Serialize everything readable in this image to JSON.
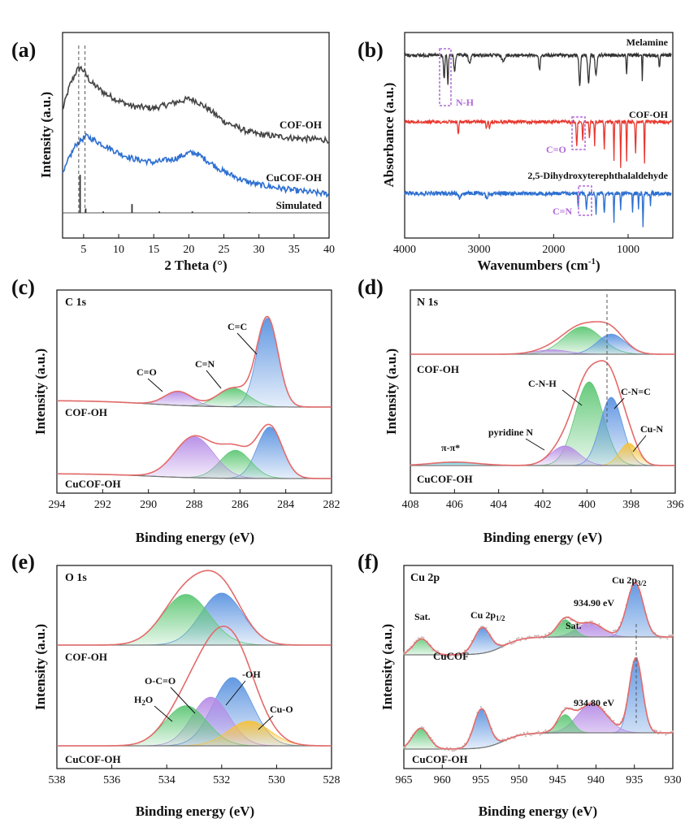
{
  "colors": {
    "dark": "#444444",
    "blue": "#2d6fd1",
    "red": "#e8382f",
    "envelope": "#e46a6a",
    "blueFill": "#5b93e0",
    "greenFill": "#5ec775",
    "purpleFill": "#b68ce6",
    "yellowFill": "#f7c23a",
    "baseline": "#777777",
    "annPurple": "#b06ad8"
  },
  "chart_data": [
    {
      "panel": "(a)",
      "type": "line",
      "title": "",
      "xlabel": "2 Theta (°)",
      "ylabel": "Intensity (a.u.)",
      "xlim": [
        2,
        40
      ],
      "xticks": [
        5,
        10,
        15,
        20,
        25,
        30,
        35,
        40
      ],
      "reference_lines": [
        4.3,
        5.2
      ],
      "series": [
        {
          "name": "COF-OH",
          "x": [
            2,
            3,
            4,
            4.5,
            5,
            6,
            8,
            10,
            12,
            15,
            18,
            20,
            21,
            23,
            25,
            28,
            30,
            35,
            40
          ],
          "y": [
            55,
            68,
            76,
            78,
            76,
            70,
            64,
            60,
            57,
            56,
            59,
            61,
            60,
            55,
            49,
            44,
            42,
            40,
            39
          ]
        },
        {
          "name": "CuCOF-OH",
          "x": [
            2,
            3,
            4,
            5,
            5.5,
            6,
            8,
            10,
            12,
            15,
            18,
            20,
            21,
            23,
            25,
            28,
            30,
            35,
            40
          ],
          "y": [
            20,
            30,
            37,
            40,
            41,
            40,
            36,
            32,
            29,
            27,
            29,
            32,
            32,
            27,
            22,
            17,
            15,
            12,
            10
          ]
        },
        {
          "name": "Simulated",
          "sticks": [
            [
              4.5,
              26
            ],
            [
              5.3,
              3
            ],
            [
              7.8,
              1
            ],
            [
              11.9,
              6
            ],
            [
              15.8,
              1
            ],
            [
              20.5,
              1
            ],
            [
              28.6,
              0.5
            ]
          ]
        }
      ]
    },
    {
      "panel": "(b)",
      "type": "line",
      "title": "",
      "xlabel": "Wavenumbers (cm⁻¹)",
      "ylabel": "Absorbance (a.u.)",
      "xlim": [
        4000,
        400
      ],
      "xticks": [
        4000,
        3000,
        2000,
        1000
      ],
      "series": [
        {
          "name": "Melamine"
        },
        {
          "name": "COF-OH"
        },
        {
          "name": "2,5-Dihydroxyterephthalaldehyde"
        }
      ],
      "annotations": [
        "N-H",
        "C=O",
        "C=N"
      ]
    },
    {
      "panel": "(c)",
      "type": "line",
      "title": "C 1s",
      "xlabel": "Binding energy (eV)",
      "ylabel": "Intensity (a.u.)",
      "xlim": [
        294,
        282
      ],
      "xticks": [
        294,
        292,
        290,
        288,
        286,
        284,
        282
      ],
      "samples": [
        "COF-OH",
        "CuCOF-OH"
      ],
      "peaks": [
        {
          "sample": "COF-OH",
          "label": "C=C",
          "center": 284.8,
          "height": 0.95,
          "fwhm": 1.1
        },
        {
          "sample": "COF-OH",
          "label": "C=N",
          "center": 286.3,
          "height": 0.2,
          "fwhm": 1.6
        },
        {
          "sample": "COF-OH",
          "label": "C=O",
          "center": 288.7,
          "height": 0.15,
          "fwhm": 1.4
        },
        {
          "sample": "CuCOF-OH",
          "center": 284.7,
          "height": 0.55,
          "fwhm": 1.3
        },
        {
          "sample": "CuCOF-OH",
          "center": 286.2,
          "height": 0.3,
          "fwhm": 1.6
        },
        {
          "sample": "CuCOF-OH",
          "center": 288.0,
          "height": 0.44,
          "fwhm": 2.0
        }
      ]
    },
    {
      "panel": "(d)",
      "type": "line",
      "title": "N 1s",
      "xlabel": "Binding energy (eV)",
      "ylabel": "Intensity (a.u.)",
      "xlim": [
        408,
        396
      ],
      "xticks": [
        408,
        406,
        404,
        402,
        400,
        398,
        396
      ],
      "reference_lines": [
        399.0
      ],
      "samples": [
        "COF-OH",
        "CuCOF-OH"
      ],
      "peaks": [
        {
          "sample": "COF-OH",
          "center": 400.2,
          "height": 0.75,
          "fwhm": 2.0
        },
        {
          "sample": "COF-OH",
          "center": 398.9,
          "height": 0.55,
          "fwhm": 1.5
        },
        {
          "sample": "COF-OH",
          "center": 401.6,
          "height": 0.12,
          "fwhm": 1.8
        },
        {
          "sample": "CuCOF-OH",
          "label": "C-N-H",
          "center": 399.9,
          "height": 0.98,
          "fwhm": 1.5
        },
        {
          "sample": "CuCOF-OH",
          "label": "C-N=C",
          "center": 398.9,
          "height": 0.8,
          "fwhm": 1.2
        },
        {
          "sample": "CuCOF-OH",
          "label": "Cu-N",
          "center": 398.1,
          "height": 0.26,
          "fwhm": 1.0
        },
        {
          "sample": "CuCOF-OH",
          "label": "pyridine N",
          "center": 401.0,
          "height": 0.23,
          "fwhm": 1.5
        },
        {
          "sample": "CuCOF-OH",
          "label": "π-π*",
          "center": 406.0,
          "height": 0.04,
          "fwhm": 2.5
        }
      ]
    },
    {
      "panel": "(e)",
      "type": "line",
      "title": "O 1s",
      "xlabel": "Binding energy (eV)",
      "ylabel": "Intensity (a.u.)",
      "xlim": [
        538,
        528
      ],
      "xticks": [
        538,
        536,
        534,
        532,
        530,
        528
      ],
      "samples": [
        "COF-OH",
        "CuCOF-OH"
      ],
      "peaks": [
        {
          "sample": "COF-OH",
          "center": 532.0,
          "height": 0.8,
          "fwhm": 1.8
        },
        {
          "sample": "COF-OH",
          "center": 533.3,
          "height": 0.78,
          "fwhm": 2.0
        },
        {
          "sample": "CuCOF-OH",
          "label": "-OH",
          "center": 531.6,
          "height": 0.8,
          "fwhm": 1.7
        },
        {
          "sample": "CuCOF-OH",
          "label": "O-C=O",
          "center": 532.4,
          "height": 0.57,
          "fwhm": 1.6
        },
        {
          "sample": "CuCOF-OH",
          "label": "H2O",
          "center": 533.3,
          "height": 0.47,
          "fwhm": 1.8
        },
        {
          "sample": "CuCOF-OH",
          "label": "Cu-O",
          "center": 531.0,
          "height": 0.29,
          "fwhm": 1.8
        }
      ]
    },
    {
      "panel": "(f)",
      "type": "line",
      "title": "Cu 2p",
      "xlabel": "Binding energy (eV)",
      "ylabel": "Intensity (a.u.)",
      "xlim": [
        965,
        930
      ],
      "xticks": [
        965,
        960,
        955,
        950,
        945,
        940,
        935,
        930
      ],
      "reference_lines": [
        934.85
      ],
      "samples": [
        "CuCOF",
        "CuCOF-OH"
      ],
      "peaks": [
        {
          "sample": "CuCOF",
          "label": "Cu 2p3/2",
          "center": 934.9,
          "height": 0.95,
          "fwhm": 2.5
        },
        {
          "sample": "CuCOF",
          "label": "Cu 2p1/2",
          "center": 954.8,
          "height": 0.45,
          "fwhm": 2.5
        },
        {
          "sample": "CuCOF",
          "label": "Sat.",
          "center": 940.8,
          "height": 0.25,
          "fwhm": 4.0
        },
        {
          "sample": "CuCOF",
          "center": 944.0,
          "height": 0.3,
          "fwhm": 2.5
        },
        {
          "sample": "CuCOF",
          "center": 962.7,
          "height": 0.28,
          "fwhm": 2.5
        },
        {
          "sample": "CuCOF-OH",
          "center": 934.8,
          "height": 1.15,
          "fwhm": 2.0
        },
        {
          "sample": "CuCOF-OH",
          "center": 954.9,
          "height": 0.6,
          "fwhm": 2.3
        },
        {
          "sample": "CuCOF-OH",
          "center": 940.5,
          "height": 0.45,
          "fwhm": 4.5
        },
        {
          "sample": "CuCOF-OH",
          "center": 944.0,
          "height": 0.28,
          "fwhm": 2.3
        },
        {
          "sample": "CuCOF-OH",
          "center": 962.8,
          "height": 0.32,
          "fwhm": 2.5
        }
      ]
    }
  ],
  "panels": {
    "a": {
      "label": "(a)",
      "xlabel": "2 Theta (°)",
      "ylabel": "Intensity (a.u.)",
      "series": [
        "COF-OH",
        "CuCOF-OH",
        "Simulated"
      ],
      "ticks": [
        "5",
        "10",
        "15",
        "20",
        "25",
        "30",
        "35",
        "40"
      ]
    },
    "b": {
      "label": "(b)",
      "xlabel": "Wavenumbers (cm",
      "xlabel_sup": "-1",
      "xlabel_end": ")",
      "ylabel": "Absorbance (a.u.)",
      "series": [
        "Melamine",
        "COF-OH",
        "2,5-Dihydroxyterephthalaldehyde"
      ],
      "annotations": [
        "N-H",
        "C=O",
        "C=N"
      ],
      "ticks": [
        "4000",
        "3000",
        "2000",
        "1000"
      ]
    },
    "c": {
      "label": "(c)",
      "title": "C 1s",
      "xlabel": "Binding energy (eV)",
      "ylabel": "Intensity (a.u.)",
      "samples": [
        "COF-OH",
        "CuCOF-OH"
      ],
      "annotations": [
        "C=C",
        "C=N",
        "C=O"
      ],
      "ticks": [
        "294",
        "292",
        "290",
        "288",
        "286",
        "284",
        "282"
      ]
    },
    "d": {
      "label": "(d)",
      "title": "N 1s",
      "xlabel": "Binding energy (eV)",
      "ylabel": "Intensity (a.u.)",
      "samples": [
        "COF-OH",
        "CuCOF-OH"
      ],
      "annotations": [
        "C-N-H",
        "C-N=C",
        "pyridine N",
        "Cu-N",
        "π-π*"
      ],
      "ticks": [
        "408",
        "406",
        "404",
        "402",
        "400",
        "398",
        "396"
      ]
    },
    "e": {
      "label": "(e)",
      "title": "O 1s",
      "xlabel": "Binding energy (eV)",
      "ylabel": "Intensity (a.u.)",
      "samples": [
        "COF-OH",
        "CuCOF-OH"
      ],
      "annotations": [
        "O-C=O",
        "-OH",
        "H",
        "2",
        "O",
        "Cu-O"
      ],
      "ticks": [
        "538",
        "536",
        "534",
        "532",
        "530",
        "528"
      ]
    },
    "f": {
      "label": "(f)",
      "title": "Cu 2p",
      "xlabel": "Binding energy (eV)",
      "ylabel": "Intensity (a.u.)",
      "samples": [
        "CuCOF",
        "CuCOF-OH"
      ],
      "annotations": [
        "Sat.",
        "Sat.",
        "Cu 2p",
        "1/2",
        "Cu 2p",
        "3/2",
        "934.90 eV",
        "934.80 eV"
      ],
      "ticks": [
        "965",
        "960",
        "955",
        "950",
        "945",
        "940",
        "935",
        "930"
      ]
    }
  }
}
